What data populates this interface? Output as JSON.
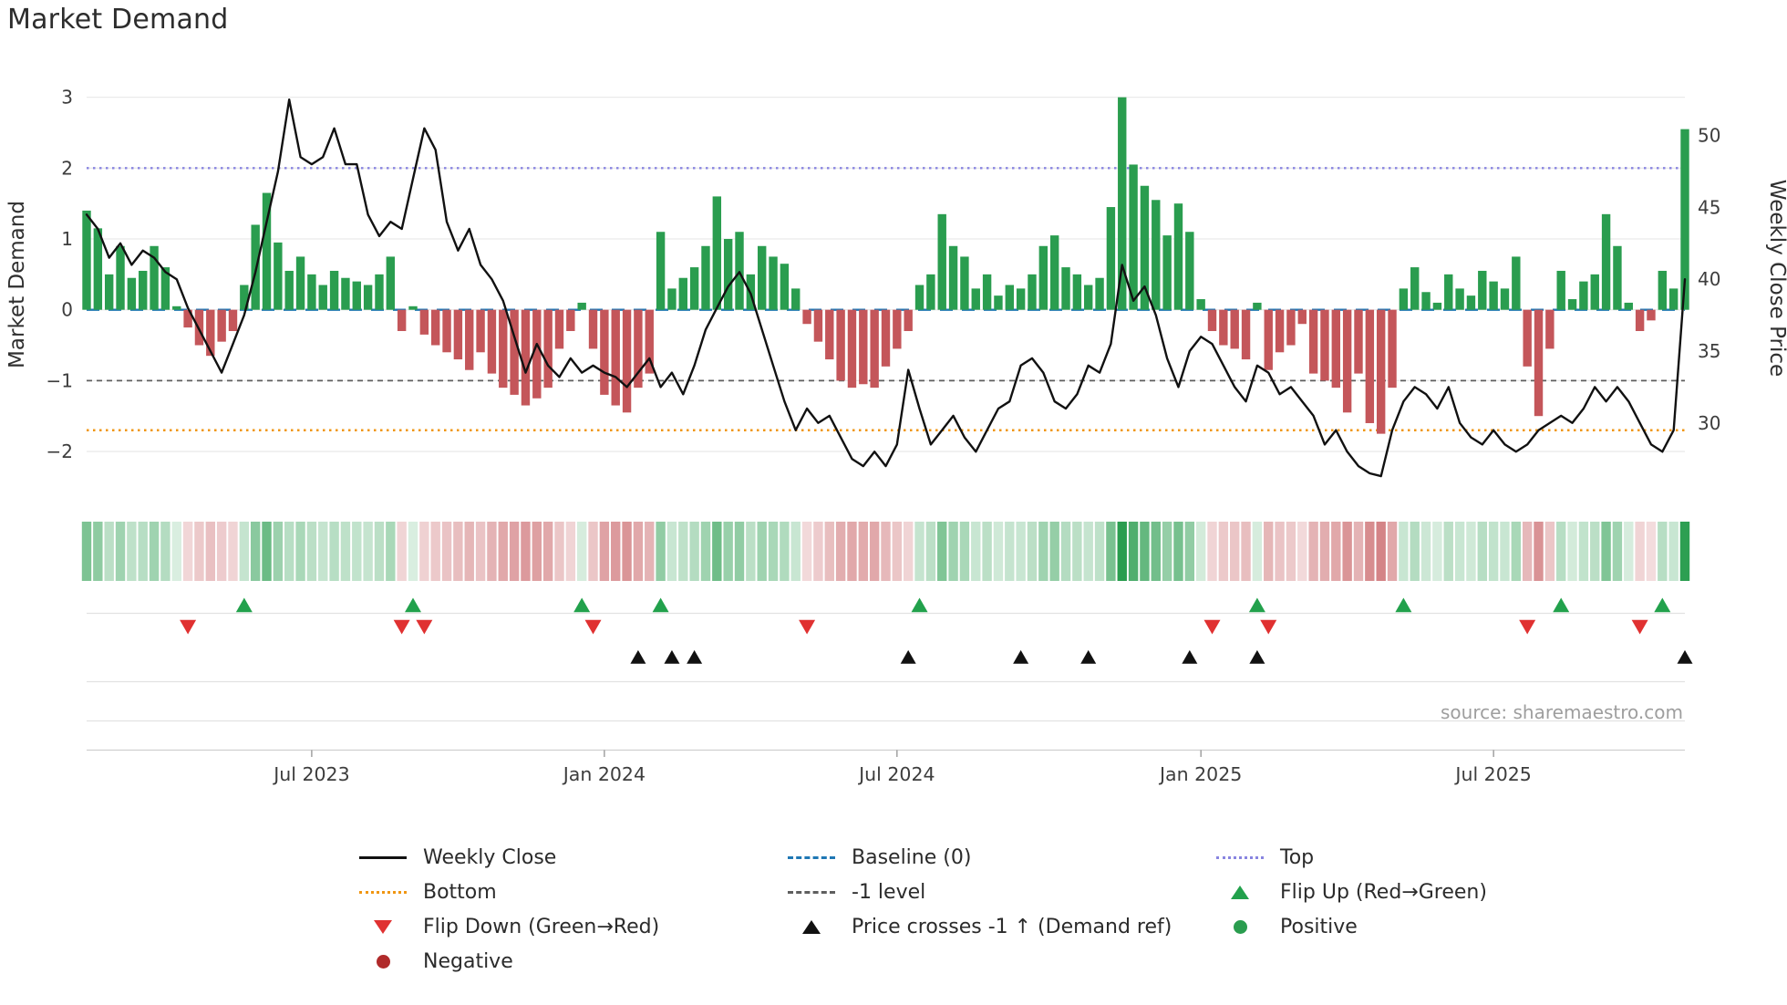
{
  "title": "Market Demand",
  "source": "source: sharemaestro.com",
  "axes": {
    "left_title": "Market Demand",
    "right_title": "Weekly Close Price"
  },
  "colors": {
    "positive": "#2a9d4f",
    "negative": "#c4565a",
    "price_line": "#111111",
    "baseline_line": "#1f77b4",
    "top_line": "#8884e0",
    "bottom_line": "#f09612",
    "minus1_line": "#5f5f5f",
    "flip_up": "#22a14c",
    "flip_down": "#e03131",
    "price_cross": "#111111",
    "positive_dot": "#2a9d4f",
    "negative_dot": "#b02a2a"
  },
  "chart_data": {
    "type": "bar+line",
    "title": "Market Demand",
    "x_unit": "weeks",
    "n_points": 143,
    "ylim_left": [
      -2.45,
      3.15
    ],
    "ylim_right": [
      25.8,
      53.4
    ],
    "grid": true,
    "series": [
      {
        "name": "Market Demand",
        "type": "bar",
        "axis": "left",
        "values": [
          1.4,
          1.15,
          0.5,
          0.9,
          0.45,
          0.55,
          0.9,
          0.6,
          0.05,
          -0.25,
          -0.5,
          -0.65,
          -0.45,
          -0.3,
          0.35,
          1.2,
          1.65,
          0.95,
          0.55,
          0.75,
          0.5,
          0.35,
          0.55,
          0.45,
          0.4,
          0.35,
          0.5,
          0.75,
          -0.3,
          0.05,
          -0.35,
          -0.5,
          -0.6,
          -0.7,
          -0.85,
          -0.6,
          -0.9,
          -1.1,
          -1.2,
          -1.35,
          -1.25,
          -1.1,
          -0.55,
          -0.3,
          0.1,
          -0.55,
          -1.2,
          -1.35,
          -1.45,
          -1.1,
          -0.9,
          1.1,
          0.3,
          0.45,
          0.6,
          0.9,
          1.6,
          1.0,
          1.1,
          0.5,
          0.9,
          0.75,
          0.65,
          0.3,
          -0.2,
          -0.45,
          -0.7,
          -1.0,
          -1.1,
          -1.05,
          -1.1,
          -0.8,
          -0.55,
          -0.3,
          0.35,
          0.5,
          1.35,
          0.9,
          0.75,
          0.3,
          0.5,
          0.2,
          0.35,
          0.3,
          0.5,
          0.9,
          1.05,
          0.6,
          0.5,
          0.35,
          0.45,
          1.45,
          3.0,
          2.05,
          1.75,
          1.55,
          1.05,
          1.5,
          1.1,
          0.15,
          -0.3,
          -0.5,
          -0.55,
          -0.7,
          0.1,
          -0.85,
          -0.6,
          -0.5,
          -0.2,
          -0.9,
          -1.0,
          -1.1,
          -1.45,
          -0.9,
          -1.6,
          -1.75,
          -1.1,
          0.3,
          0.6,
          0.25,
          0.1,
          0.5,
          0.3,
          0.2,
          0.55,
          0.4,
          0.3,
          0.75,
          -0.8,
          -1.5,
          -0.55,
          0.55,
          0.15,
          0.4,
          0.5,
          1.35,
          0.9,
          0.1,
          -0.3,
          -0.15,
          0.55,
          0.3,
          2.55
        ]
      },
      {
        "name": "Weekly Close",
        "type": "line",
        "axis": "right",
        "values": [
          44.5,
          43.5,
          41.5,
          42.5,
          41.0,
          42.0,
          41.5,
          40.5,
          40.0,
          38.0,
          36.5,
          35.0,
          33.5,
          35.5,
          37.5,
          40.5,
          44.0,
          47.5,
          52.5,
          48.5,
          48.0,
          48.5,
          50.5,
          48.0,
          48.0,
          44.5,
          43.0,
          44.0,
          43.5,
          47.0,
          50.5,
          49.0,
          44.0,
          42.0,
          43.5,
          41.0,
          40.0,
          38.5,
          36.0,
          33.5,
          35.5,
          34.0,
          33.2,
          34.5,
          33.5,
          34.0,
          33.5,
          33.2,
          32.5,
          33.5,
          34.5,
          32.5,
          33.5,
          32.0,
          34.0,
          36.5,
          38.0,
          39.5,
          40.5,
          39.0,
          36.5,
          34.0,
          31.5,
          29.5,
          31.0,
          30.0,
          30.5,
          29.0,
          27.5,
          27.0,
          28.0,
          27.0,
          28.5,
          33.7,
          31.0,
          28.5,
          29.5,
          30.5,
          29.0,
          28.0,
          29.5,
          31.0,
          31.5,
          34.0,
          34.5,
          33.5,
          31.5,
          31.0,
          32.0,
          34.0,
          33.5,
          35.5,
          41.0,
          38.5,
          39.5,
          37.5,
          34.5,
          32.5,
          35.0,
          36.0,
          35.5,
          34.0,
          32.5,
          31.5,
          34.0,
          33.5,
          32.0,
          32.5,
          31.5,
          30.5,
          28.5,
          29.5,
          28.0,
          27.0,
          26.5,
          26.3,
          29.5,
          31.5,
          32.5,
          32.0,
          31.0,
          32.5,
          30.0,
          29.0,
          28.5,
          29.5,
          28.5,
          28.0,
          28.5,
          29.5,
          30.0,
          30.5,
          30.0,
          31.0,
          32.5,
          31.5,
          32.5,
          31.5,
          30.0,
          28.5,
          28.0,
          29.5,
          40.0
        ]
      }
    ],
    "x_ticks": [
      {
        "i": 20,
        "label": "Jul 2023"
      },
      {
        "i": 46,
        "label": "Jan 2024"
      },
      {
        "i": 72,
        "label": "Jul 2024"
      },
      {
        "i": 99,
        "label": "Jan 2025"
      },
      {
        "i": 125,
        "label": "Jul 2025"
      }
    ],
    "left_ticks": [
      {
        "v": 3,
        "label": "3"
      },
      {
        "v": 2,
        "label": "2"
      },
      {
        "v": 1,
        "label": "1"
      },
      {
        "v": 0,
        "label": "0"
      },
      {
        "v": -1,
        "label": "−1"
      },
      {
        "v": -2,
        "label": "−2"
      }
    ],
    "right_ticks": [
      {
        "v": 50,
        "label": "50"
      },
      {
        "v": 45,
        "label": "45"
      },
      {
        "v": 40,
        "label": "40"
      },
      {
        "v": 35,
        "label": "35"
      },
      {
        "v": 30,
        "label": "30"
      }
    ],
    "ref_lines": [
      {
        "label": "Top",
        "value": 2,
        "color": "#8884e0",
        "style": "dotted"
      },
      {
        "label": "Baseline (0)",
        "value": 0,
        "color": "#1f77b4",
        "style": "long-dash"
      },
      {
        "label": "-1 level",
        "value": -1,
        "color": "#5f5f5f",
        "style": "dash"
      },
      {
        "label": "Bottom",
        "value": -1.7,
        "color": "#f09612",
        "style": "dotted"
      }
    ],
    "markers": {
      "flip_up": [
        14,
        29,
        44,
        51,
        74,
        104,
        117,
        131,
        140
      ],
      "flip_down": [
        9,
        28,
        30,
        45,
        64,
        100,
        105,
        128,
        138
      ],
      "price_cross": [
        49,
        52,
        54,
        73,
        83,
        89,
        98,
        104,
        142
      ]
    }
  },
  "legend": {
    "items": [
      {
        "label": "Weekly Close",
        "marker": "line-solid-black"
      },
      {
        "label": "Baseline (0)",
        "marker": "line-dashed-blue"
      },
      {
        "label": "Top",
        "marker": "line-dotted-purple"
      },
      {
        "label": "Bottom",
        "marker": "line-dotted-orange"
      },
      {
        "label": "-1 level",
        "marker": "line-dashed-gray"
      },
      {
        "label": "Flip Up (Red→Green)",
        "marker": "triangle-up-green"
      },
      {
        "label": "Flip Down (Green→Red)",
        "marker": "triangle-down-red"
      },
      {
        "label": "Price crosses -1 ↑ (Demand ref)",
        "marker": "triangle-up-black"
      },
      {
        "label": "Positive",
        "marker": "dot-green"
      },
      {
        "label": "Negative",
        "marker": "dot-darkred"
      }
    ]
  }
}
